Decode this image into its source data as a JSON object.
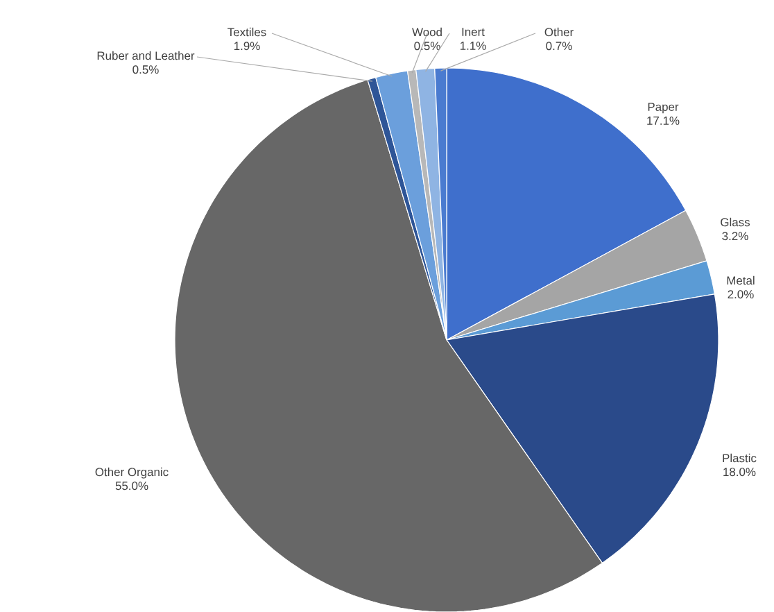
{
  "chart_data": {
    "type": "pie",
    "categories": [
      "Paper",
      "Glass",
      "Metal",
      "Plastic",
      "Other Organic",
      "Ruber and Leather",
      "Textiles",
      "Wood",
      "Inert",
      "Other"
    ],
    "values": [
      17.1,
      3.2,
      2.0,
      18.0,
      55.0,
      0.5,
      1.9,
      0.5,
      1.1,
      0.7
    ],
    "value_labels": [
      "17.1%",
      "3.2%",
      "2.0%",
      "18.0%",
      "55.0%",
      "0.5%",
      "1.9%",
      "0.5%",
      "1.1%",
      "0.7%"
    ],
    "colors": [
      "#3f6fcc",
      "#a5a5a5",
      "#5b9bd5",
      "#2a4a8a",
      "#676767",
      "#2e5597",
      "#6b9fdc",
      "#b8b8b8",
      "#8fb4e3",
      "#4a7bd0"
    ]
  }
}
